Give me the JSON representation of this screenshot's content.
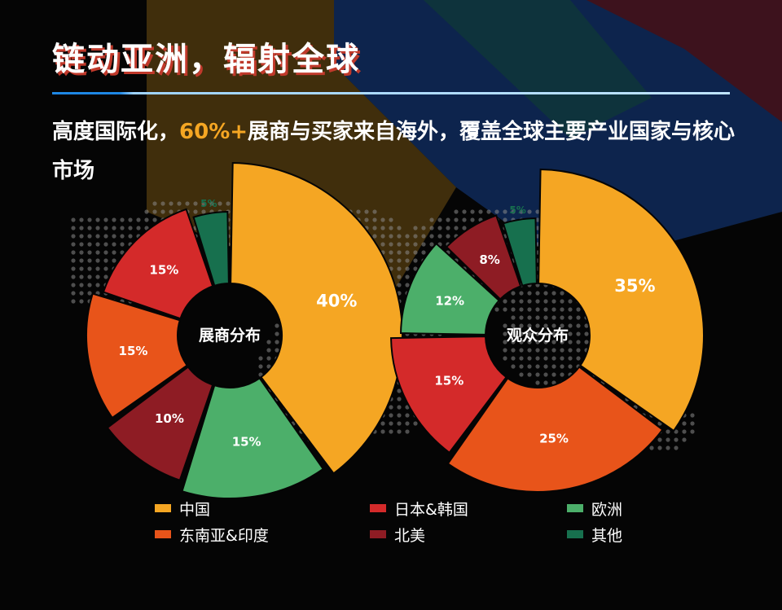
{
  "header": {
    "title": "链动亚洲，辐射全球",
    "subtitle_pre": "高度国际化，",
    "subtitle_highlight": "60%+",
    "subtitle_post": "展商与买家来自海外，覆盖全球主要产业国家与核心市场"
  },
  "colors": {
    "china": "#f5a623",
    "sea_india": "#e8541a",
    "japan_korea": "#d42a2a",
    "north_america": "#8e1c24",
    "europe": "#4caf6a",
    "other": "#17704e",
    "accent": "#f5a623"
  },
  "legend": [
    {
      "label": "中国",
      "color": "#f5a623"
    },
    {
      "label": "东南亚&印度",
      "color": "#e8541a"
    },
    {
      "label": "日本&韩国",
      "color": "#d42a2a"
    },
    {
      "label": "北美",
      "color": "#8e1c24"
    },
    {
      "label": "欧洲",
      "color": "#4caf6a"
    },
    {
      "label": "其他",
      "color": "#17704e"
    }
  ],
  "chart_data": [
    {
      "type": "pie",
      "title": "展商分布",
      "categories": [
        "中国",
        "欧洲",
        "北美",
        "东南亚&印度",
        "日本&韩国",
        "其他"
      ],
      "values": [
        40,
        15,
        10,
        15,
        15,
        5
      ],
      "labels": [
        "40%",
        "15%",
        "10%",
        "15%",
        "15%",
        "5%"
      ],
      "colors": [
        "#f5a623",
        "#4caf6a",
        "#8e1c24",
        "#e8541a",
        "#d42a2a",
        "#17704e"
      ]
    },
    {
      "type": "pie",
      "title": "观众分布",
      "categories": [
        "中国",
        "东南亚&印度",
        "日本&韩国",
        "欧洲",
        "北美",
        "其他"
      ],
      "values": [
        35,
        25,
        15,
        12,
        8,
        5
      ],
      "labels": [
        "35%",
        "25%",
        "15%",
        "12%",
        "8%",
        "5%"
      ],
      "colors": [
        "#f5a623",
        "#e8541a",
        "#d42a2a",
        "#4caf6a",
        "#8e1c24",
        "#17704e"
      ]
    }
  ]
}
